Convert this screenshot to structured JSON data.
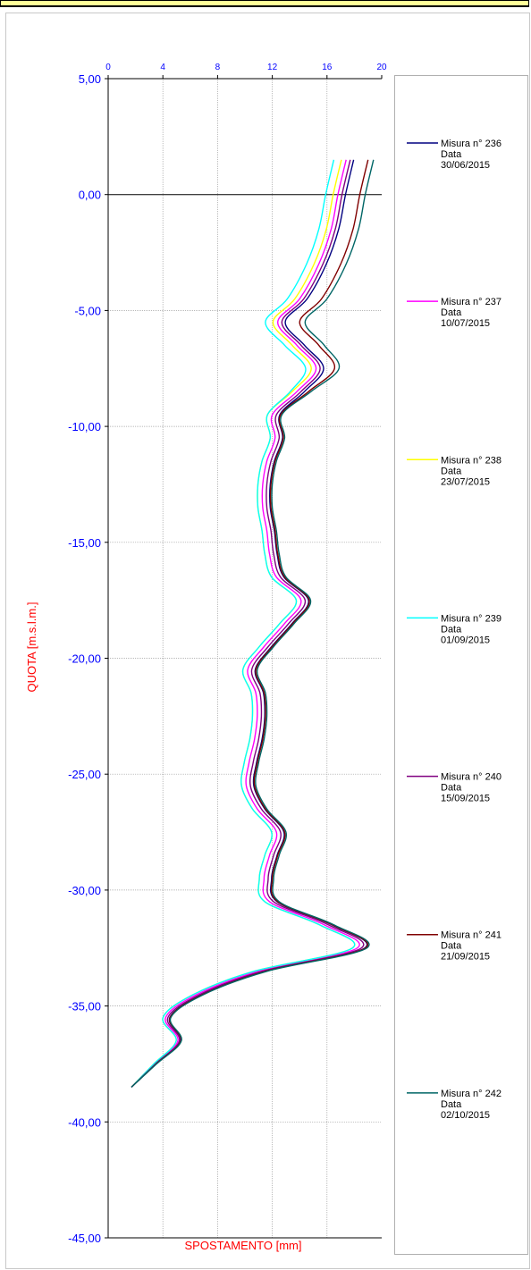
{
  "chart_data": {
    "type": "line",
    "xlabel": "SPOSTAMENTO [mm]",
    "ylabel": "QUOTA [m.s.l.m.]",
    "xlim": [
      0,
      20
    ],
    "ylim": [
      -45,
      5
    ],
    "x_ticks": [
      "0",
      "4",
      "8",
      "12",
      "16",
      "20"
    ],
    "y_ticks": [
      "5,00",
      "0,00",
      "-5,00",
      "-10,00",
      "-15,00",
      "-20,00",
      "-25,00",
      "-30,00",
      "-35,00",
      "-40,00",
      "-45,00"
    ],
    "grid": true,
    "legend_position": "right",
    "base_profile": {
      "depth": [
        1.5,
        0.0,
        -1.5,
        -3.0,
        -4.5,
        -5.5,
        -6.5,
        -7.5,
        -8.5,
        -9.5,
        -10.5,
        -11.5,
        -12.5,
        -13.5,
        -14.5,
        -15.5,
        -16.5,
        -17.5,
        -18.5,
        -19.5,
        -20.5,
        -21.5,
        -22.5,
        -23.5,
        -24.5,
        -25.5,
        -26.5,
        -27.5,
        -28.5,
        -29.5,
        -30.5,
        -31.5,
        -32.5,
        -33.5,
        -34.5,
        -35.5,
        -36.5,
        -37.5,
        -38.5
      ],
      "displacement": [
        17.4,
        16.8,
        16.3,
        15.4,
        14.0,
        12.4,
        13.8,
        15.2,
        13.8,
        12.0,
        12.2,
        11.6,
        11.3,
        11.3,
        11.6,
        11.8,
        12.3,
        14.1,
        12.9,
        11.4,
        10.2,
        10.8,
        10.9,
        10.7,
        10.3,
        10.1,
        10.9,
        12.3,
        11.8,
        11.4,
        11.8,
        15.8,
        18.2,
        11.0,
        6.5,
        4.2,
        5.1,
        3.4,
        1.7
      ]
    },
    "series": [
      {
        "name": "Misura n° 236",
        "date_label": "Data",
        "date": "30/06/2015",
        "color": "#000080",
        "offset": 0.55,
        "upper_offset": 0.55
      },
      {
        "name": "Misura n° 237",
        "date_label": "Data",
        "date": "10/07/2015",
        "color": "#ff00ff",
        "offset": 0.0,
        "upper_offset": 0.0
      },
      {
        "name": "Misura n° 238",
        "date_label": "Data",
        "date": "23/07/2015",
        "color": "#ffff00",
        "offset": -0.35,
        "upper_offset": -0.35
      },
      {
        "name": "Misura n° 239",
        "date_label": "Data",
        "date": "01/09/2015",
        "color": "#00ffff",
        "offset": -0.35,
        "upper_offset": -0.9
      },
      {
        "name": "Misura n° 240",
        "date_label": "Data",
        "date": "15/09/2015",
        "color": "#800080",
        "offset": 0.3,
        "upper_offset": 0.3
      },
      {
        "name": "Misura n° 241",
        "date_label": "Data",
        "date": "21/09/2015",
        "color": "#800000",
        "offset": 0.6,
        "upper_offset": 1.6
      },
      {
        "name": "Misura n° 242",
        "date_label": "Data",
        "date": "02/10/2015",
        "color": "#006666",
        "offset": 0.7,
        "upper_offset": 2.0
      }
    ]
  }
}
